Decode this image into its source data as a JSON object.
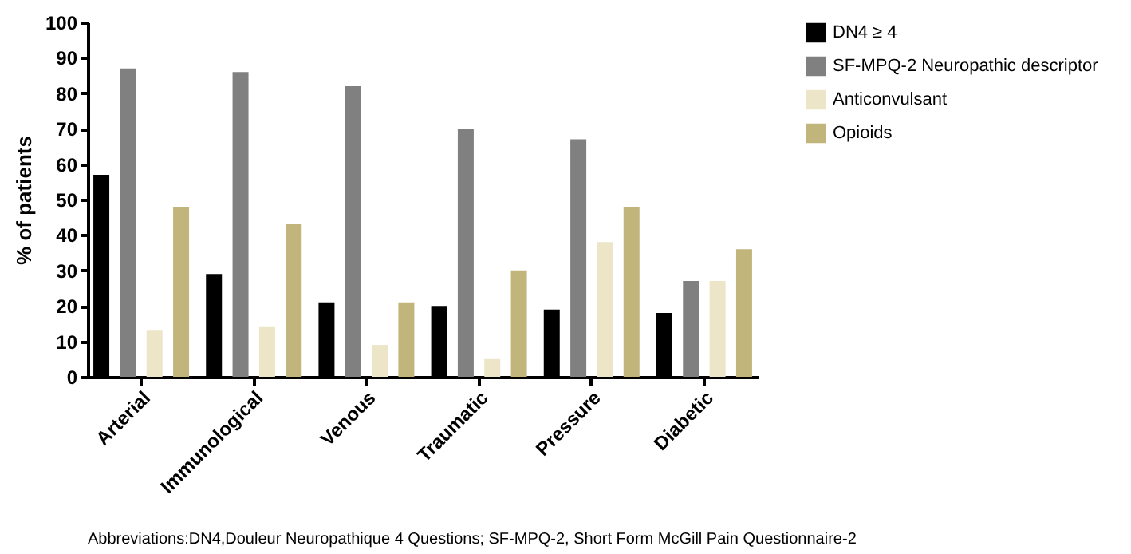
{
  "chart_data": {
    "type": "bar",
    "ylabel": "% of patients",
    "categories": [
      "Arterial",
      "Immunological",
      "Venous",
      "Traumatic",
      "Pressure",
      "Diabetic"
    ],
    "series": [
      {
        "name": "DN4 ≥ 4",
        "color": "#000000",
        "values": [
          57,
          29,
          21,
          20,
          19,
          18
        ]
      },
      {
        "name": "SF-MPQ-2 Neuropathic descriptor",
        "color": "#808080",
        "values": [
          87,
          86,
          82,
          70,
          67,
          27
        ]
      },
      {
        "name": "Anticonvulsant",
        "color": "#ede5c8",
        "values": [
          13,
          14,
          9,
          5,
          38,
          27
        ]
      },
      {
        "name": "Opioids",
        "color": "#c2b57c",
        "values": [
          48,
          43,
          21,
          30,
          48,
          36
        ]
      }
    ],
    "ylim": [
      0,
      100
    ],
    "yticks": [
      0,
      10,
      20,
      30,
      40,
      50,
      60,
      70,
      80,
      90,
      100
    ],
    "grid": false,
    "legend": "top right",
    "annotations": [
      "Abbreviations:DN4,Douleur Neuropathique 4 Questions; SF-MPQ-2, Short Form McGill Pain Questionnaire-2"
    ]
  }
}
